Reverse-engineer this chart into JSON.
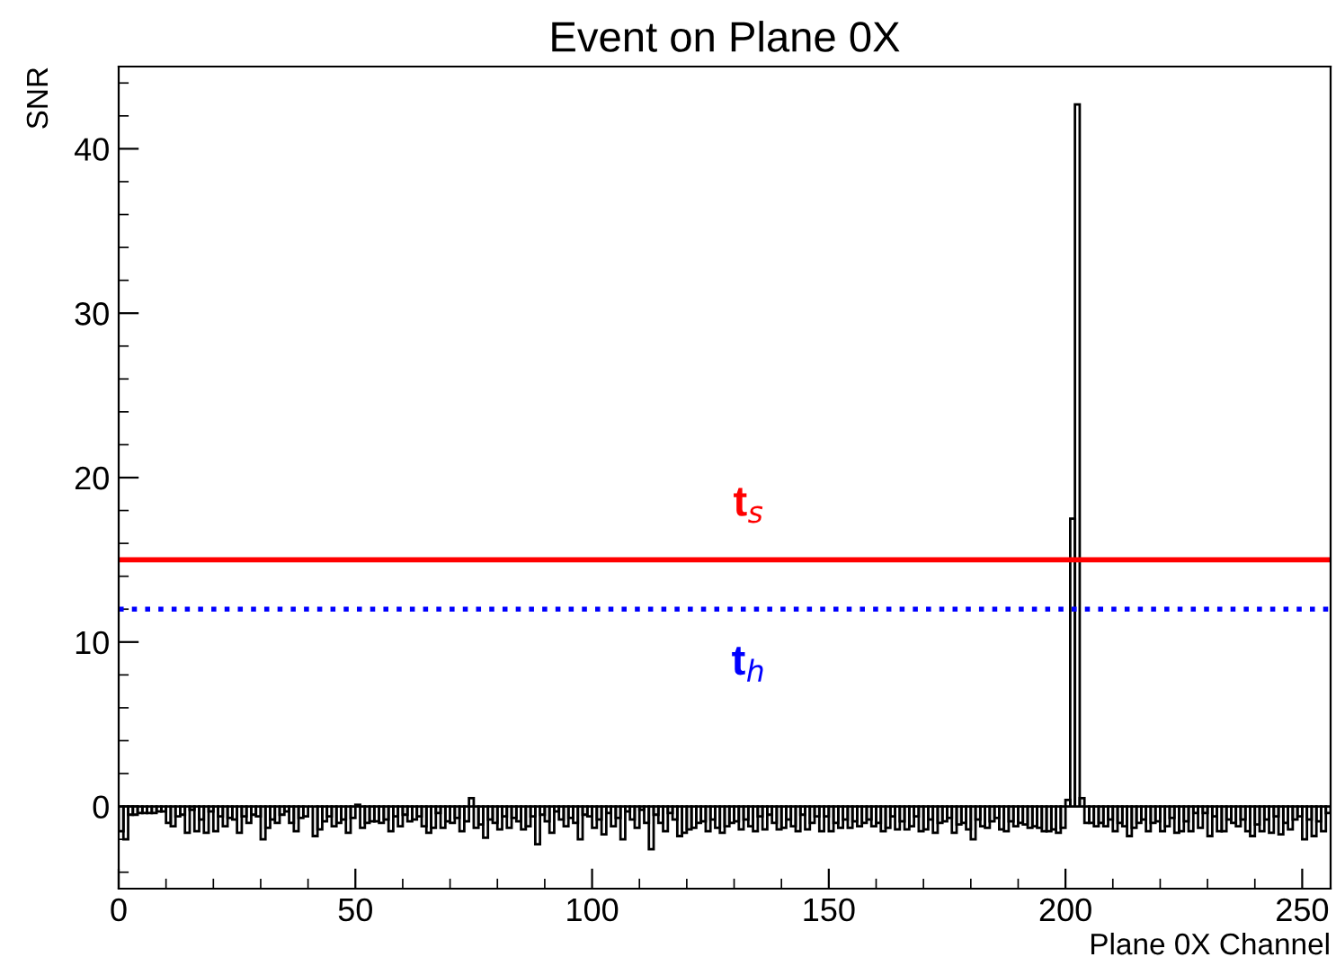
{
  "chart_data": {
    "type": "histogram",
    "title": "Event on Plane 0X",
    "xlabel": "Plane 0X Channel",
    "ylabel": "SNR",
    "color": "#000000",
    "bins": [
      0,
      1,
      2,
      3,
      4,
      5,
      6,
      7,
      8,
      9,
      10,
      11,
      12,
      13,
      14,
      15,
      16,
      17,
      18,
      19,
      20,
      21,
      22,
      23,
      24,
      25,
      26,
      27,
      28,
      29,
      30,
      31,
      32,
      33,
      34,
      35,
      36,
      37,
      38,
      39,
      40,
      41,
      42,
      43,
      44,
      45,
      46,
      47,
      48,
      49,
      50,
      51,
      52,
      53,
      54,
      55,
      56,
      57,
      58,
      59,
      60,
      61,
      62,
      63,
      64,
      65,
      66,
      67,
      68,
      69,
      70,
      71,
      72,
      73,
      74,
      75,
      76,
      77,
      78,
      79,
      80,
      81,
      82,
      83,
      84,
      85,
      86,
      87,
      88,
      89,
      90,
      91,
      92,
      93,
      94,
      95,
      96,
      97,
      98,
      99,
      100,
      101,
      102,
      103,
      104,
      105,
      106,
      107,
      108,
      109,
      110,
      111,
      112,
      113,
      114,
      115,
      116,
      117,
      118,
      119,
      120,
      121,
      122,
      123,
      124,
      125,
      126,
      127,
      128,
      129,
      130,
      131,
      132,
      133,
      134,
      135,
      136,
      137,
      138,
      139,
      140,
      141,
      142,
      143,
      144,
      145,
      146,
      147,
      148,
      149,
      150,
      151,
      152,
      153,
      154,
      155,
      156,
      157,
      158,
      159,
      160,
      161,
      162,
      163,
      164,
      165,
      166,
      167,
      168,
      169,
      170,
      171,
      172,
      173,
      174,
      175,
      176,
      177,
      178,
      179,
      180,
      181,
      182,
      183,
      184,
      185,
      186,
      187,
      188,
      189,
      190,
      191,
      192,
      193,
      194,
      195,
      196,
      197,
      198,
      199,
      200,
      201,
      202,
      203,
      204,
      205,
      206,
      207,
      208,
      209,
      210,
      211,
      212,
      213,
      214,
      215,
      216,
      217,
      218,
      219,
      220,
      221,
      222,
      223,
      224,
      225,
      226,
      227,
      228,
      229,
      230,
      231,
      232,
      233,
      234,
      235,
      236,
      237,
      238,
      239,
      240,
      241,
      242,
      243,
      244,
      245,
      246,
      247,
      248,
      249,
      250,
      251,
      252,
      253,
      254,
      255,
      256
    ],
    "values": [
      -1.5,
      -2.0,
      -0.5,
      -0.5,
      -0.4,
      -0.4,
      -0.4,
      -0.4,
      -0.3,
      -0.3,
      -1.0,
      -1.2,
      -0.6,
      -0.5,
      -1.6,
      -0.2,
      -1.5,
      -0.8,
      -1.6,
      -0.3,
      -1.5,
      -0.6,
      -1.2,
      -0.7,
      -0.8,
      -1.6,
      -0.6,
      -1.0,
      -0.5,
      -0.6,
      -2.0,
      -1.3,
      -0.8,
      -1.0,
      -0.5,
      -0.3,
      -1.0,
      -1.5,
      -0.7,
      -0.6,
      0.0,
      -1.8,
      -1.4,
      -0.9,
      -0.6,
      -1.2,
      -1.0,
      -0.8,
      -1.6,
      -0.7,
      0.1,
      -1.3,
      -1.0,
      -0.9,
      -0.9,
      -1.0,
      -0.8,
      -1.5,
      -0.6,
      -1.2,
      -0.5,
      -0.9,
      -0.8,
      -0.6,
      -1.2,
      -1.6,
      -1.3,
      -0.4,
      -1.3,
      -0.9,
      -1.0,
      -0.7,
      -1.5,
      -0.9,
      0.5,
      -1.3,
      -1.1,
      -1.9,
      -0.8,
      -1.0,
      -1.4,
      -0.6,
      -1.3,
      -0.7,
      -0.9,
      -1.4,
      -1.2,
      -0.6,
      -2.3,
      -0.5,
      -0.9,
      -1.6,
      -0.3,
      -0.8,
      -1.2,
      -0.7,
      -1.0,
      -2.0,
      -0.5,
      -0.6,
      -1.3,
      -0.8,
      -1.7,
      -0.4,
      -1.2,
      -0.7,
      -2.0,
      -0.3,
      -0.8,
      -1.3,
      -0.2,
      -1.0,
      -2.6,
      -0.5,
      -1.0,
      -1.5,
      -0.4,
      -0.8,
      -1.8,
      -1.6,
      -1.4,
      -1.3,
      -1.0,
      -0.9,
      -1.5,
      -0.8,
      -1.3,
      -1.6,
      -1.2,
      -1.0,
      -0.9,
      -1.4,
      -0.8,
      -1.2,
      -1.5,
      -0.6,
      -1.4,
      -0.5,
      -1.0,
      -1.4,
      -1.3,
      -0.8,
      -1.2,
      -1.5,
      -0.5,
      -1.4,
      -1.0,
      -0.6,
      -1.5,
      -0.6,
      -1.5,
      -1.0,
      -1.3,
      -0.8,
      -1.3,
      -0.9,
      -1.2,
      -1.0,
      -0.8,
      -1.2,
      -1.0,
      -1.5,
      -1.3,
      -0.6,
      -1.4,
      -0.9,
      -1.4,
      -1.2,
      -0.6,
      -1.5,
      -1.4,
      -0.8,
      -1.6,
      -1.0,
      -0.9,
      -0.7,
      -1.6,
      -1.1,
      -1.0,
      -1.4,
      -2.0,
      -0.8,
      -1.2,
      -1.3,
      -0.9,
      -0.7,
      -1.4,
      -1.5,
      -0.9,
      -1.2,
      -1.0,
      -1.1,
      -1.3,
      -1.2,
      -1.3,
      -1.5,
      -1.5,
      -1.4,
      -1.6,
      -1.3,
      0.4,
      17.5,
      42.7,
      0.5,
      -1.0,
      -1.0,
      -1.2,
      -1.0,
      -1.2,
      -0.8,
      -1.5,
      -1.0,
      -1.2,
      -1.8,
      -1.3,
      -1.0,
      -0.8,
      -1.5,
      -1.0,
      -0.9,
      -1.5,
      -1.2,
      -0.7,
      -1.6,
      -1.5,
      -0.9,
      -1.5,
      -0.4,
      -1.3,
      -0.4,
      -1.8,
      -0.6,
      -1.5,
      -1.5,
      -0.8,
      -1.0,
      -1.2,
      -0.8,
      -1.5,
      -1.8,
      -1.1,
      -1.5,
      -0.8,
      -1.6,
      -0.6,
      -1.7,
      -1.0,
      -1.4,
      -0.8,
      -0.6,
      -2.0,
      -0.8,
      -1.8,
      -0.9,
      -1.5,
      -0.4
    ],
    "xlim": [
      0,
      256
    ],
    "xticks": [
      0,
      50,
      100,
      150,
      200,
      250
    ],
    "ylim": [
      -5,
      45
    ],
    "yticks": [
      0,
      10,
      20,
      30,
      40
    ],
    "grid": false,
    "ref_lines": [
      {
        "axis": "y",
        "value": 15,
        "color": "#ff0000",
        "line_style": "solid",
        "label": "t$_{s}$"
      },
      {
        "axis": "y",
        "value": 12,
        "color": "#0000ff",
        "line_style": "dotted",
        "label": "t$_{h}$"
      }
    ]
  }
}
